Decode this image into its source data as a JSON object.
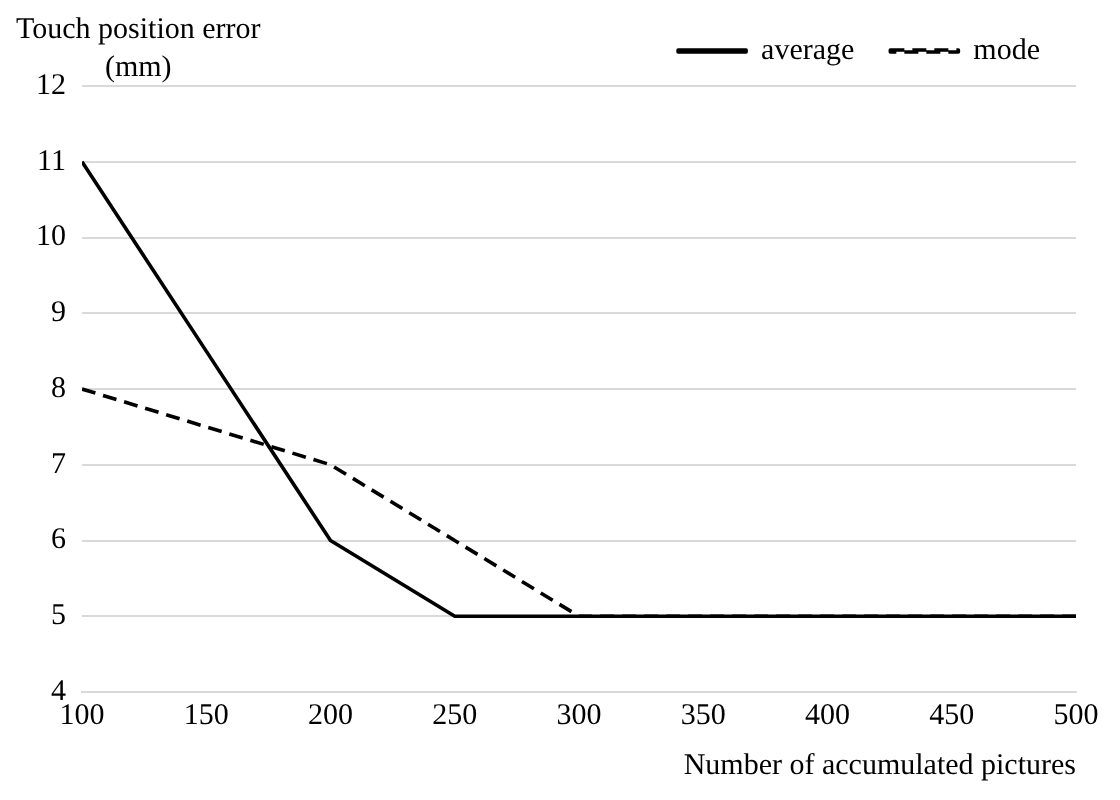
{
  "chart_data": {
    "type": "line",
    "xlabel": "Number of accumulated pictures",
    "ylabel": "Touch position error\n(mm)",
    "x": [
      100,
      150,
      200,
      250,
      300,
      350,
      400,
      450,
      500
    ],
    "series": [
      {
        "name": "average",
        "color": "#000000",
        "line_style": "solid",
        "values": [
          11,
          8.5,
          6,
          5,
          5,
          5,
          5,
          5,
          5
        ]
      },
      {
        "name": "mode",
        "color": "#000000",
        "line_style": "dashed",
        "values": [
          8,
          7.5,
          7,
          6,
          5,
          5,
          5,
          5,
          5
        ]
      }
    ],
    "xlim": [
      100,
      500
    ],
    "xticks": [
      100,
      150,
      200,
      250,
      300,
      350,
      400,
      450,
      500
    ],
    "ylim": [
      4,
      12
    ],
    "yticks": [
      4,
      5,
      6,
      7,
      8,
      9,
      10,
      11,
      12
    ],
    "grid": "y",
    "legend": "top right",
    "marker": "none"
  }
}
